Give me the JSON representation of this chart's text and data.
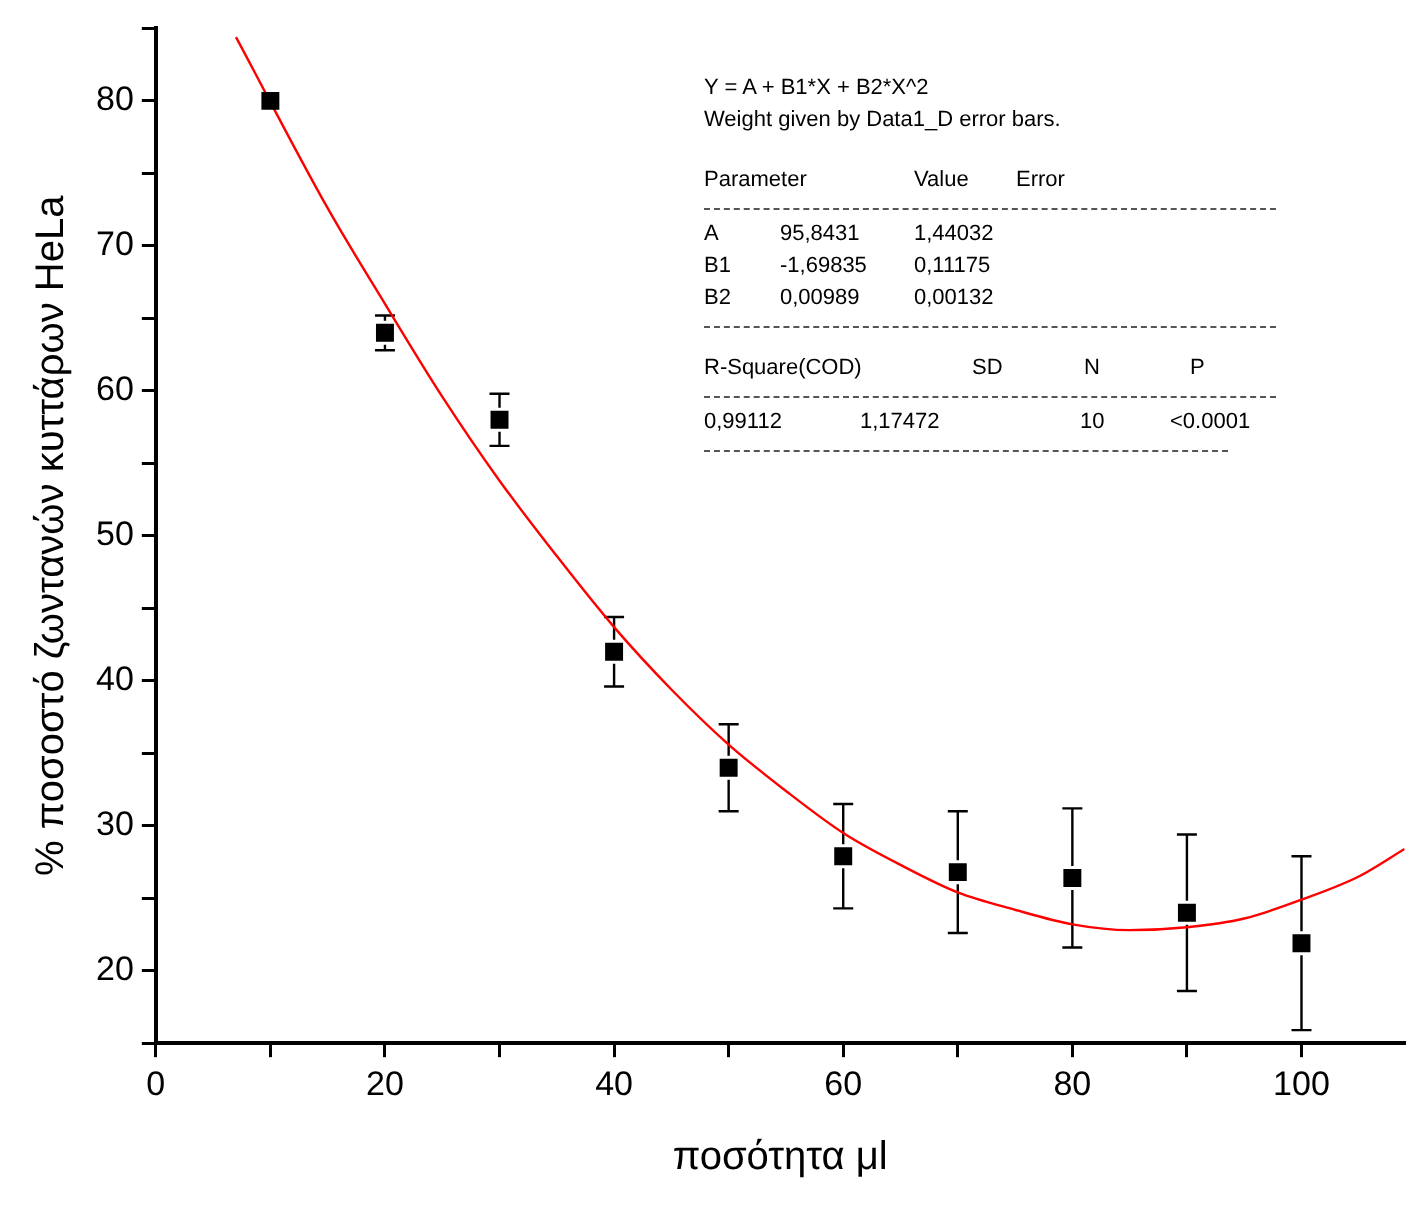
{
  "chart_data": {
    "type": "scatter",
    "xlabel": "ποσότητα μl",
    "ylabel": "% ποσοστό ζωντανών κυττάρων HeLa",
    "x": [
      10,
      20,
      30,
      40,
      50,
      60,
      70,
      80,
      90,
      100
    ],
    "series": [
      {
        "type": "scatter",
        "color": "#000000",
        "marker": "square",
        "values": [
          80,
          64,
          58,
          42,
          34,
          27.9,
          26.8,
          26.4,
          24,
          21.9
        ],
        "errors": [
          null,
          1.2,
          1.8,
          2.4,
          3,
          3.6,
          4.2,
          4.8,
          5.4,
          6
        ]
      },
      {
        "type": "line",
        "color": "#ff0000",
        "marker": "none",
        "x": [
          7,
          15,
          20,
          25,
          30,
          35,
          40,
          45,
          50,
          55,
          60,
          65,
          70,
          75,
          80,
          85,
          90,
          95,
          100,
          105,
          109
        ],
        "values": [
          84.4,
          72.6,
          66,
          59.6,
          53.8,
          48.6,
          43.7,
          39.4,
          35.6,
          32.4,
          29.5,
          27.3,
          25.4,
          24.2,
          23.2,
          22.8,
          23,
          23.6,
          24.9,
          26.5,
          28.4
        ]
      }
    ],
    "xlim": [
      0,
      109
    ],
    "ylim": [
      15,
      85
    ],
    "xticks": [
      0,
      {
        "value": 10,
        "label": null
      },
      20,
      {
        "value": 30,
        "label": null
      },
      40,
      {
        "value": 50,
        "label": null
      },
      60,
      {
        "value": 70,
        "label": null
      },
      80,
      {
        "value": 90,
        "label": null
      },
      100
    ],
    "yticks": [
      {
        "value": 15,
        "label": null
      },
      20,
      {
        "value": 25,
        "label": null
      },
      30,
      {
        "value": 35,
        "label": null
      },
      40,
      {
        "value": 45,
        "label": null
      },
      50,
      {
        "value": 55,
        "label": null
      },
      60,
      {
        "value": 65,
        "label": null
      },
      70,
      {
        "value": 75,
        "label": null
      },
      80,
      {
        "value": 85,
        "label": null
      }
    ],
    "grid": false,
    "legend": false,
    "annotations": [
      "Y = A + B1*X + B2*X^2",
      "Weight given by Data1_D error bars.",
      "Parameter Value Error",
      "A 95,8431 1,44032",
      "B1 -1,69835 0,11175",
      "B2 0,00989 0,00132",
      "R-Square(COD) SD N P",
      "0,99112 1,17472 10 <0.0001"
    ]
  }
}
